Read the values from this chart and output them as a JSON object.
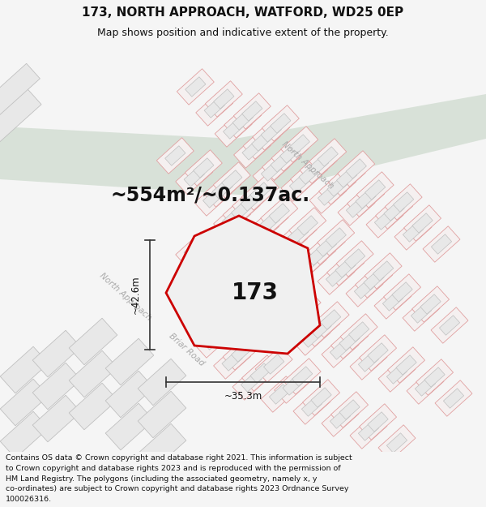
{
  "title_line1": "173, NORTH APPROACH, WATFORD, WD25 0EP",
  "title_line2": "Map shows position and indicative extent of the property.",
  "area_text": "~554m²/~0.137ac.",
  "label_173": "173",
  "dim_width": "~35.3m",
  "dim_height": "~42.6m",
  "road_label_na1": "North Approach",
  "road_label_na2": "North Approach",
  "road_label_br": "Briar Road",
  "footer_lines": [
    "Contains OS data © Crown copyright and database right 2021. This information is subject",
    "to Crown copyright and database rights 2023 and is reproduced with the permission of",
    "HM Land Registry. The polygons (including the associated geometry, namely x, y",
    "co-ordinates) are subject to Crown copyright and database rights 2023 Ordnance Survey",
    "100026316."
  ],
  "bg_color": "#f5f5f5",
  "map_bg": "#ffffff",
  "plot_fill": "#f0f0f0",
  "plot_stroke": "#cc0000",
  "green_color": "#ccd9cc",
  "bld_gray_fill": "#e8e8e8",
  "bld_gray_stroke": "#c0c0c0",
  "bld_pink_fill": "#f5f0f0",
  "bld_pink_stroke": "#e0a0a0",
  "lot_pink_stroke": "#e0a0a0",
  "road_text_color": "#aaaaaa",
  "dim_line_color": "#333333",
  "text_color": "#111111",
  "title_fontsize": 11,
  "subtitle_fontsize": 9,
  "area_fontsize": 17,
  "label_fontsize": 20,
  "road_fontsize": 7.5,
  "dim_fontsize": 8.5,
  "footer_fontsize": 6.8
}
